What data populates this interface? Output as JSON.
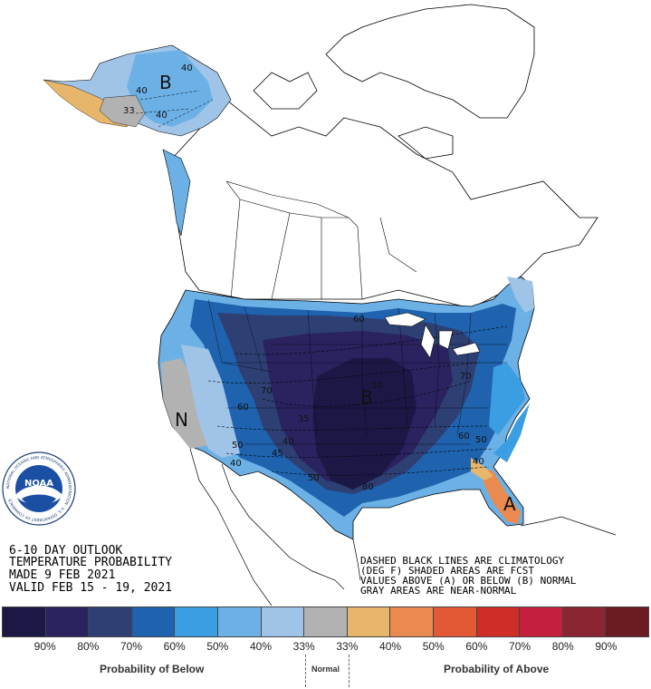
{
  "outlook": {
    "line1": "6-10 DAY OUTLOOK",
    "line2": "TEMPERATURE PROBABILITY",
    "line3": "MADE  9 FEB 2021",
    "line4": "VALID  FEB 15 - 19, 2021"
  },
  "notes": {
    "line1": "DASHED BLACK LINES ARE CLIMATOLOGY",
    "line2": "(DEG F) SHADED AREAS ARE FCST",
    "line3": "VALUES ABOVE (A) OR BELOW (B) NORMAL",
    "line4": "GRAY AREAS ARE NEAR-NORMAL"
  },
  "logo": {
    "text": "NOAA",
    "ring_text": "NATIONAL OCEANIC AND ATMOSPHERIC ADMINISTRATION · U.S. DEPARTMENT OF COMMERCE"
  },
  "map_labels": {
    "alaska_letter": "B",
    "conus_letter": "B",
    "west_letter": "N",
    "florida_letter": "A",
    "contours": {
      "ak40a": "40",
      "ak40b": "40",
      "ak40c": "40",
      "ak33": "33",
      "c70a": "70",
      "c60a": "60",
      "c50a": "50",
      "c40a": "40",
      "c60b": "60",
      "c70b": "70",
      "c35": "35",
      "c40b": "40",
      "c45": "45",
      "c50b": "50",
      "c50c": "50",
      "c80": "80",
      "c60c": "60",
      "c50d": "50",
      "c40c": "40"
    }
  },
  "legend": {
    "colors": [
      "#1c1846",
      "#2a2360",
      "#2e3f73",
      "#1f62ad",
      "#3b9ee3",
      "#6cb1e6",
      "#a0c4e8",
      "#b2b2b2",
      "#e7b66a",
      "#ea8a4f",
      "#e25a35",
      "#cf2d27",
      "#c4203e",
      "#8a2631",
      "#6b1c22"
    ],
    "labels": [
      "90%",
      "80%",
      "70%",
      "60%",
      "50%",
      "40%",
      "33%",
      "33%",
      "40%",
      "50%",
      "60%",
      "70%",
      "80%",
      "90%"
    ],
    "below_title": "Probability of Below",
    "normal_title": "Normal",
    "above_title": "Probability of Above"
  }
}
